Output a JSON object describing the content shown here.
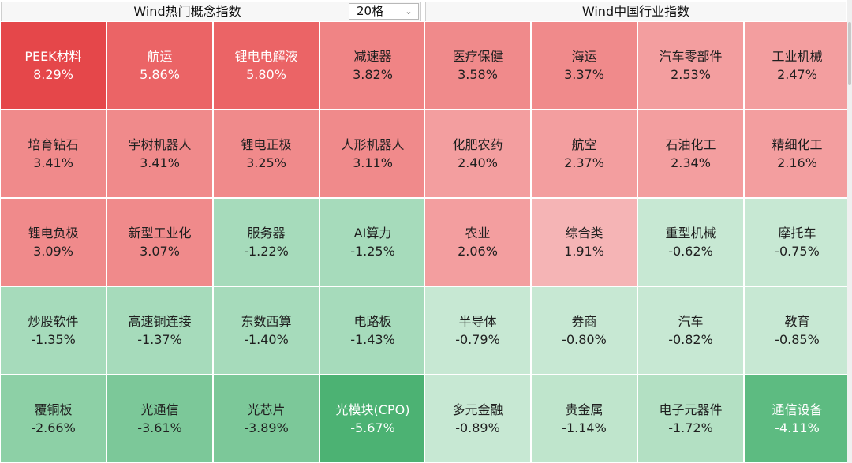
{
  "left": {
    "title": "Wind热门概念指数",
    "dropdown_value": "20格",
    "cells": [
      {
        "name": "PEEK材料",
        "change": "8.29%",
        "bg": "#e5474a",
        "light": true
      },
      {
        "name": "航运",
        "change": "5.86%",
        "bg": "#eb6466",
        "light": true
      },
      {
        "name": "锂电电解液",
        "change": "5.80%",
        "bg": "#eb6466",
        "light": true
      },
      {
        "name": "减速器",
        "change": "3.82%",
        "bg": "#f08485",
        "light": false
      },
      {
        "name": "培育钻石",
        "change": "3.41%",
        "bg": "#f08a8b",
        "light": false
      },
      {
        "name": "宇树机器人",
        "change": "3.41%",
        "bg": "#f08a8b",
        "light": false
      },
      {
        "name": "锂电正极",
        "change": "3.25%",
        "bg": "#f08a8b",
        "light": false
      },
      {
        "name": "人形机器人",
        "change": "3.11%",
        "bg": "#f08a8b",
        "light": false
      },
      {
        "name": "锂电负极",
        "change": "3.09%",
        "bg": "#f08a8b",
        "light": false
      },
      {
        "name": "新型工业化",
        "change": "3.07%",
        "bg": "#f08a8b",
        "light": false
      },
      {
        "name": "服务器",
        "change": "-1.22%",
        "bg": "#a6dbbb",
        "light": false
      },
      {
        "name": "AI算力",
        "change": "-1.25%",
        "bg": "#a6dbbb",
        "light": false
      },
      {
        "name": "炒股软件",
        "change": "-1.35%",
        "bg": "#a6dbbb",
        "light": false
      },
      {
        "name": "高速铜连接",
        "change": "-1.37%",
        "bg": "#a6dbbb",
        "light": false
      },
      {
        "name": "东数西算",
        "change": "-1.40%",
        "bg": "#a6dbbb",
        "light": false
      },
      {
        "name": "电路板",
        "change": "-1.43%",
        "bg": "#a6dbbb",
        "light": false
      },
      {
        "name": "覆铜板",
        "change": "-2.66%",
        "bg": "#8dd0a6",
        "light": false
      },
      {
        "name": "光通信",
        "change": "-3.61%",
        "bg": "#7cc899",
        "light": false
      },
      {
        "name": "光芯片",
        "change": "-3.89%",
        "bg": "#7cc899",
        "light": false
      },
      {
        "name": "光模块(CPO)",
        "change": "-5.67%",
        "bg": "#4cb273",
        "light": true
      }
    ]
  },
  "right": {
    "title": "Wind中国行业指数",
    "cells": [
      {
        "name": "医疗保健",
        "change": "3.58%",
        "bg": "#f08a8b",
        "light": false
      },
      {
        "name": "海运",
        "change": "3.37%",
        "bg": "#f08a8b",
        "light": false
      },
      {
        "name": "汽车零部件",
        "change": "2.53%",
        "bg": "#f39e9f",
        "light": false
      },
      {
        "name": "工业机械",
        "change": "2.47%",
        "bg": "#f39e9f",
        "light": false
      },
      {
        "name": "化肥农药",
        "change": "2.40%",
        "bg": "#f39e9f",
        "light": false
      },
      {
        "name": "航空",
        "change": "2.37%",
        "bg": "#f39e9f",
        "light": false
      },
      {
        "name": "石油化工",
        "change": "2.34%",
        "bg": "#f39e9f",
        "light": false
      },
      {
        "name": "精细化工",
        "change": "2.16%",
        "bg": "#f39e9f",
        "light": false
      },
      {
        "name": "农业",
        "change": "2.06%",
        "bg": "#f39e9f",
        "light": false
      },
      {
        "name": "综合类",
        "change": "1.91%",
        "bg": "#f5b4b5",
        "light": false
      },
      {
        "name": "重型机械",
        "change": "-0.62%",
        "bg": "#c7e8d3",
        "light": false
      },
      {
        "name": "摩托车",
        "change": "-0.75%",
        "bg": "#c7e8d3",
        "light": false
      },
      {
        "name": "半导体",
        "change": "-0.79%",
        "bg": "#c7e8d3",
        "light": false
      },
      {
        "name": "券商",
        "change": "-0.80%",
        "bg": "#c7e8d3",
        "light": false
      },
      {
        "name": "汽车",
        "change": "-0.82%",
        "bg": "#c7e8d3",
        "light": false
      },
      {
        "name": "教育",
        "change": "-0.85%",
        "bg": "#c7e8d3",
        "light": false
      },
      {
        "name": "多元金融",
        "change": "-0.89%",
        "bg": "#c7e8d3",
        "light": false
      },
      {
        "name": "贵金属",
        "change": "-1.14%",
        "bg": "#bfe5cc",
        "light": false
      },
      {
        "name": "电子元器件",
        "change": "-1.72%",
        "bg": "#b3e0c3",
        "light": false
      },
      {
        "name": "通信设备",
        "change": "-4.11%",
        "bg": "#5dbb81",
        "light": true
      }
    ]
  }
}
